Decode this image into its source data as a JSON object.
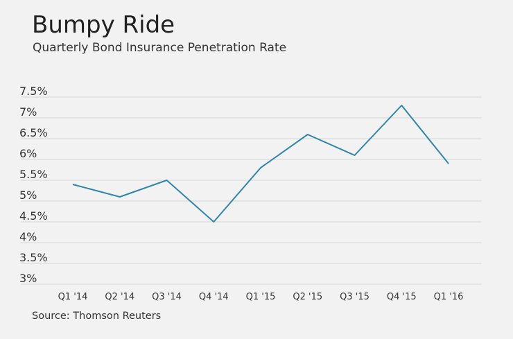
{
  "title": "Bumpy Ride",
  "subtitle": "Quarterly Bond Insurance Penetration Rate",
  "source": "Source: Thomson Reuters",
  "colors": {
    "line": "#2e86ab",
    "grid": "#d6d6d6",
    "background": "#f2f2f2",
    "text": "#333333"
  },
  "chart_data": {
    "type": "line",
    "title": "Bumpy Ride",
    "subtitle": "Quarterly Bond Insurance Penetration Rate",
    "xlabel": "",
    "ylabel": "",
    "categories": [
      "Q1 '14",
      "Q2 '14",
      "Q3 '14",
      "Q4 '14",
      "Q1 '15",
      "Q2 '15",
      "Q3 '15",
      "Q4 '15",
      "Q1 '16"
    ],
    "series": [
      {
        "name": "Penetration rate",
        "values": [
          5.4,
          5.1,
          5.5,
          4.5,
          5.8,
          6.6,
          6.1,
          7.3,
          5.9
        ]
      }
    ],
    "yticks": [
      3,
      3.5,
      4,
      4.5,
      5,
      5.5,
      6,
      6.5,
      7,
      7.5
    ],
    "ytick_labels": [
      "3%",
      "3.5%",
      "4%",
      "4.5%",
      "5%",
      "5.5%",
      "6%",
      "6.5%",
      "7%",
      "7.5%"
    ],
    "ylim": [
      3,
      7.5
    ],
    "grid": true,
    "legend": "none"
  }
}
